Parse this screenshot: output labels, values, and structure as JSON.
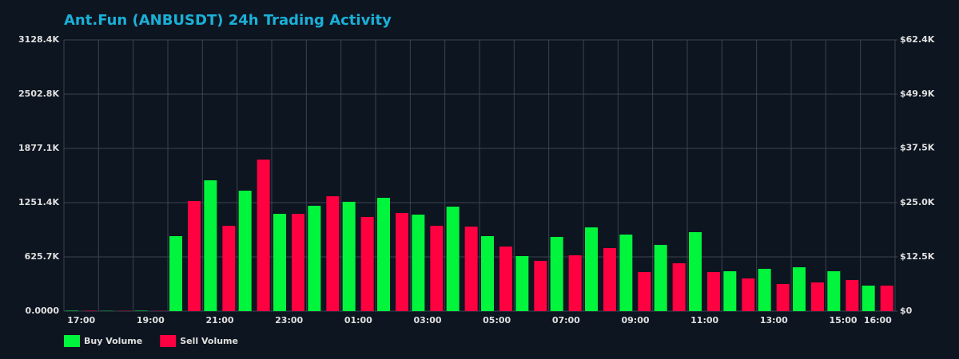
{
  "chart_data": {
    "type": "bar",
    "title": "Ant.Fun (ANBUSDT) 24h Trading Activity",
    "categories": [
      "17:00",
      null,
      "19:00",
      null,
      "21:00",
      null,
      "23:00",
      null,
      "01:00",
      null,
      "03:00",
      null,
      "05:00",
      null,
      "07:00",
      null,
      "09:00",
      null,
      "11:00",
      null,
      "13:00",
      null,
      "15:00",
      "16:00"
    ],
    "series": [
      {
        "name": "Buy Volume",
        "color": "#00f53c",
        "values": [
          5,
          3,
          5,
          865,
          1509,
          1389,
          1122,
          1215,
          1261,
          1307,
          1113,
          1205,
          865,
          635,
          856,
          966,
          883,
          764,
          911,
          460,
          488,
          506,
          460,
          294
        ]
      },
      {
        "name": "Sell Volume",
        "color": "#ff0040",
        "values": [
          5,
          3,
          3,
          1270,
          984,
          1748,
          1122,
          1325,
          1086,
          1132,
          984,
          975,
          745,
          580,
          644,
          727,
          451,
          552,
          451,
          377,
          313,
          331,
          359,
          294
        ]
      }
    ],
    "ylim": [
      0,
      3128.4
    ],
    "yticks": [
      {
        "value": 0,
        "label": "0.0000"
      },
      {
        "value": 625.7,
        "label": "625.7K"
      },
      {
        "value": 1251.4,
        "label": "1251.4K"
      },
      {
        "value": 1877.1,
        "label": "1877.1K"
      },
      {
        "value": 2502.8,
        "label": "2502.8K"
      },
      {
        "value": 3128.4,
        "label": "3128.4K"
      }
    ],
    "y2lim": [
      0,
      62.4
    ],
    "y2ticks": [
      {
        "value": 0,
        "label": "$0"
      },
      {
        "value": 12.5,
        "label": "$12.5K"
      },
      {
        "value": 25.0,
        "label": "$25.0K"
      },
      {
        "value": 37.5,
        "label": "$37.5K"
      },
      {
        "value": 49.9,
        "label": "$49.9K"
      },
      {
        "value": 62.4,
        "label": "$62.4K"
      }
    ],
    "grid": true,
    "legend": "bottom-left"
  }
}
